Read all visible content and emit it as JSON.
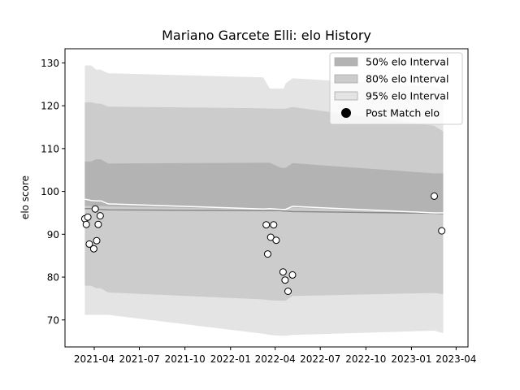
{
  "chart_data": {
    "type": "area",
    "title": "Mariano Garcete Elli: elo History",
    "xlabel": "",
    "ylabel": "elo score",
    "xlim": [
      "2021-02-01",
      "2023-04-25"
    ],
    "ylim": [
      63.7,
      133.3
    ],
    "x_ticks": [
      "2021-04",
      "2021-07",
      "2021-10",
      "2022-01",
      "2022-04",
      "2022-07",
      "2022-10",
      "2023-01",
      "2023-04"
    ],
    "y_ticks": [
      70,
      80,
      90,
      100,
      110,
      120,
      130
    ],
    "grid": false,
    "legend_position": "top-right",
    "colors": {
      "band50": "#b3b3b3",
      "band80": "#cccccc",
      "band95": "#e4e4e4",
      "mean_line": "#ffffff",
      "rating_line": "#8a8a8a",
      "marker_face": "#ffffff",
      "marker_edge": "#000000"
    },
    "legend": [
      {
        "label": "50% elo Interval",
        "key": "band50"
      },
      {
        "label": "80% elo Interval",
        "key": "band80"
      },
      {
        "label": "95% elo Interval",
        "key": "band95"
      },
      {
        "label": "Post Match elo",
        "key": "marker"
      }
    ],
    "bands": {
      "dates": [
        "2021-03-13",
        "2021-03-26",
        "2021-04-05",
        "2021-04-14",
        "2021-04-29",
        "2022-03-08",
        "2022-03-21",
        "2022-04-13",
        "2022-04-18",
        "2022-04-22",
        "2022-05-06",
        "2023-02-16",
        "2023-03-06"
      ],
      "mean": [
        98.2,
        97.9,
        97.8,
        97.8,
        97.1,
        95.9,
        96.0,
        95.8,
        95.8,
        95.8,
        96.5,
        95.0,
        95.0
      ],
      "p50": [
        [
          96.6,
          107.0
        ],
        [
          96.6,
          107.0
        ],
        [
          96.6,
          107.5
        ],
        [
          96.6,
          107.5
        ],
        [
          96.5,
          106.5
        ],
        [
          95.8,
          106.7
        ],
        [
          95.8,
          106.7
        ],
        [
          95.8,
          105.5
        ],
        [
          95.8,
          105.5
        ],
        [
          95.8,
          105.5
        ],
        [
          96.2,
          106.6
        ],
        [
          94.9,
          104.2
        ],
        [
          94.9,
          104.2
        ]
      ],
      "p80": [
        [
          78.0,
          120.8
        ],
        [
          78.0,
          120.8
        ],
        [
          77.4,
          120.5
        ],
        [
          77.4,
          120.5
        ],
        [
          76.4,
          119.8
        ],
        [
          74.8,
          119.4
        ],
        [
          74.6,
          119.3
        ],
        [
          74.5,
          119.3
        ],
        [
          74.5,
          119.3
        ],
        [
          74.5,
          119.3
        ],
        [
          75.6,
          119.7
        ],
        [
          76.3,
          115.3
        ],
        [
          76.0,
          114.0
        ]
      ],
      "p95": [
        [
          71.2,
          129.4
        ],
        [
          71.2,
          129.4
        ],
        [
          71.2,
          128.4
        ],
        [
          71.2,
          128.4
        ],
        [
          71.2,
          127.6
        ],
        [
          66.8,
          126.6
        ],
        [
          66.5,
          124.0
        ],
        [
          66.3,
          124.0
        ],
        [
          66.3,
          124.0
        ],
        [
          66.3,
          125.2
        ],
        [
          66.5,
          126.4
        ],
        [
          67.5,
          124.5
        ],
        [
          66.9,
          123.4
        ]
      ],
      "rating_line": [
        96.0,
        96.0,
        95.9,
        95.8,
        95.7,
        95.5,
        95.5,
        95.5,
        95.4,
        95.4,
        95.3,
        94.9,
        94.8
      ]
    },
    "points": [
      {
        "x": "2021-03-13",
        "y": 93.6
      },
      {
        "x": "2021-03-16",
        "y": 92.3
      },
      {
        "x": "2021-03-19",
        "y": 94.0
      },
      {
        "x": "2021-03-22",
        "y": 87.7
      },
      {
        "x": "2021-03-31",
        "y": 86.6
      },
      {
        "x": "2021-04-03",
        "y": 95.9
      },
      {
        "x": "2021-04-06",
        "y": 88.5
      },
      {
        "x": "2021-04-09",
        "y": 92.3
      },
      {
        "x": "2021-04-13",
        "y": 94.3
      },
      {
        "x": "2022-03-14",
        "y": 92.2
      },
      {
        "x": "2022-03-17",
        "y": 85.4
      },
      {
        "x": "2022-03-23",
        "y": 89.3
      },
      {
        "x": "2022-03-29",
        "y": 92.2
      },
      {
        "x": "2022-04-03",
        "y": 88.6
      },
      {
        "x": "2022-04-17",
        "y": 81.2
      },
      {
        "x": "2022-04-21",
        "y": 79.3
      },
      {
        "x": "2022-04-27",
        "y": 76.7
      },
      {
        "x": "2022-05-06",
        "y": 80.5
      },
      {
        "x": "2023-02-16",
        "y": 98.9
      },
      {
        "x": "2023-03-03",
        "y": 90.8
      }
    ]
  }
}
